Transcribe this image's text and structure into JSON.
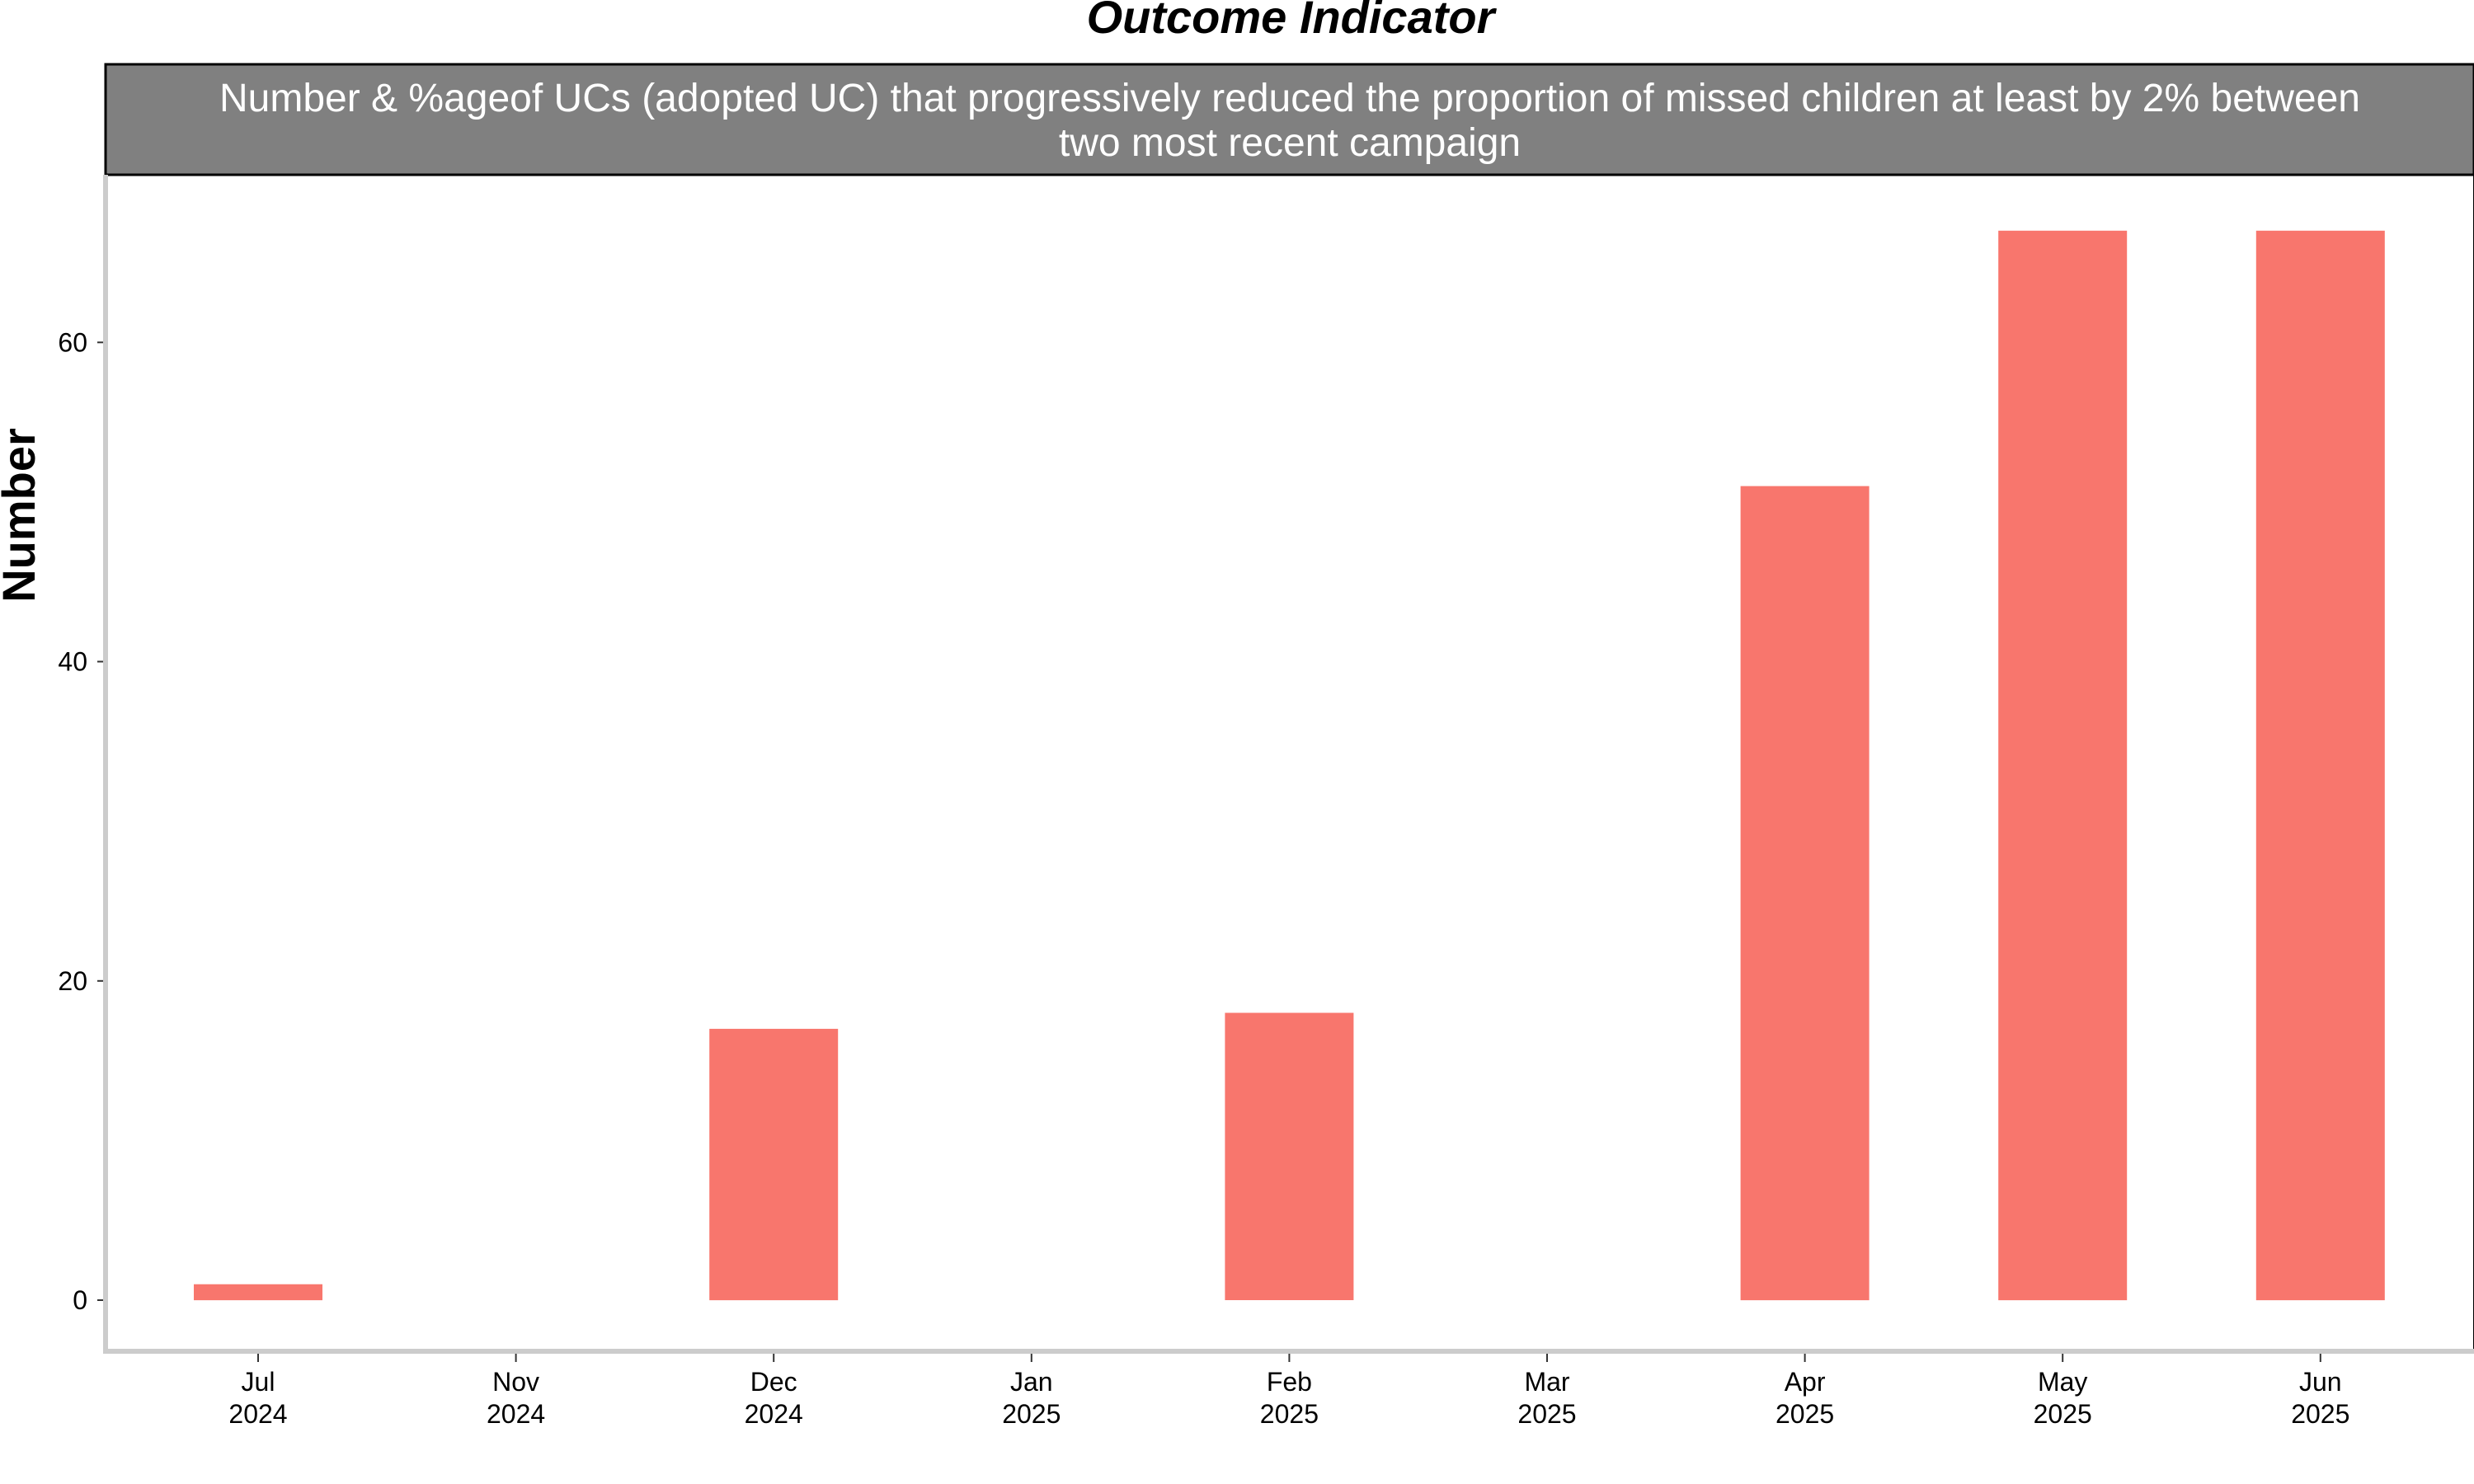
{
  "chart_data": {
    "type": "bar",
    "title": "Outcome Indicator",
    "facet_label": "Number & %ageof UCs (adopted UC) that progressively reduced the proportion of missed children at least by 2% between two most recent campaign",
    "facet_label_lines": [
      "Number & %ageof UCs (adopted UC) that progressively reduced the proportion of missed children at least by 2% between",
      "two most recent campaign"
    ],
    "xlabel": "",
    "ylabel": "Number",
    "ylim": [
      -3.2,
      70.5
    ],
    "yticks": [
      0,
      20,
      40,
      60
    ],
    "categories": [
      {
        "month": "Jul",
        "year": "2024"
      },
      {
        "month": "Nov",
        "year": "2024"
      },
      {
        "month": "Dec",
        "year": "2024"
      },
      {
        "month": "Jan",
        "year": "2025"
      },
      {
        "month": "Feb",
        "year": "2025"
      },
      {
        "month": "Mar",
        "year": "2025"
      },
      {
        "month": "Apr",
        "year": "2025"
      },
      {
        "month": "May",
        "year": "2025"
      },
      {
        "month": "Jun",
        "year": "2025"
      }
    ],
    "values": [
      1,
      null,
      17,
      null,
      18,
      null,
      51,
      67,
      67
    ],
    "grid": false,
    "legend": "none",
    "colors": {
      "bar": "#F8766D",
      "strip": "#808080",
      "axis": "#cccccc"
    }
  }
}
